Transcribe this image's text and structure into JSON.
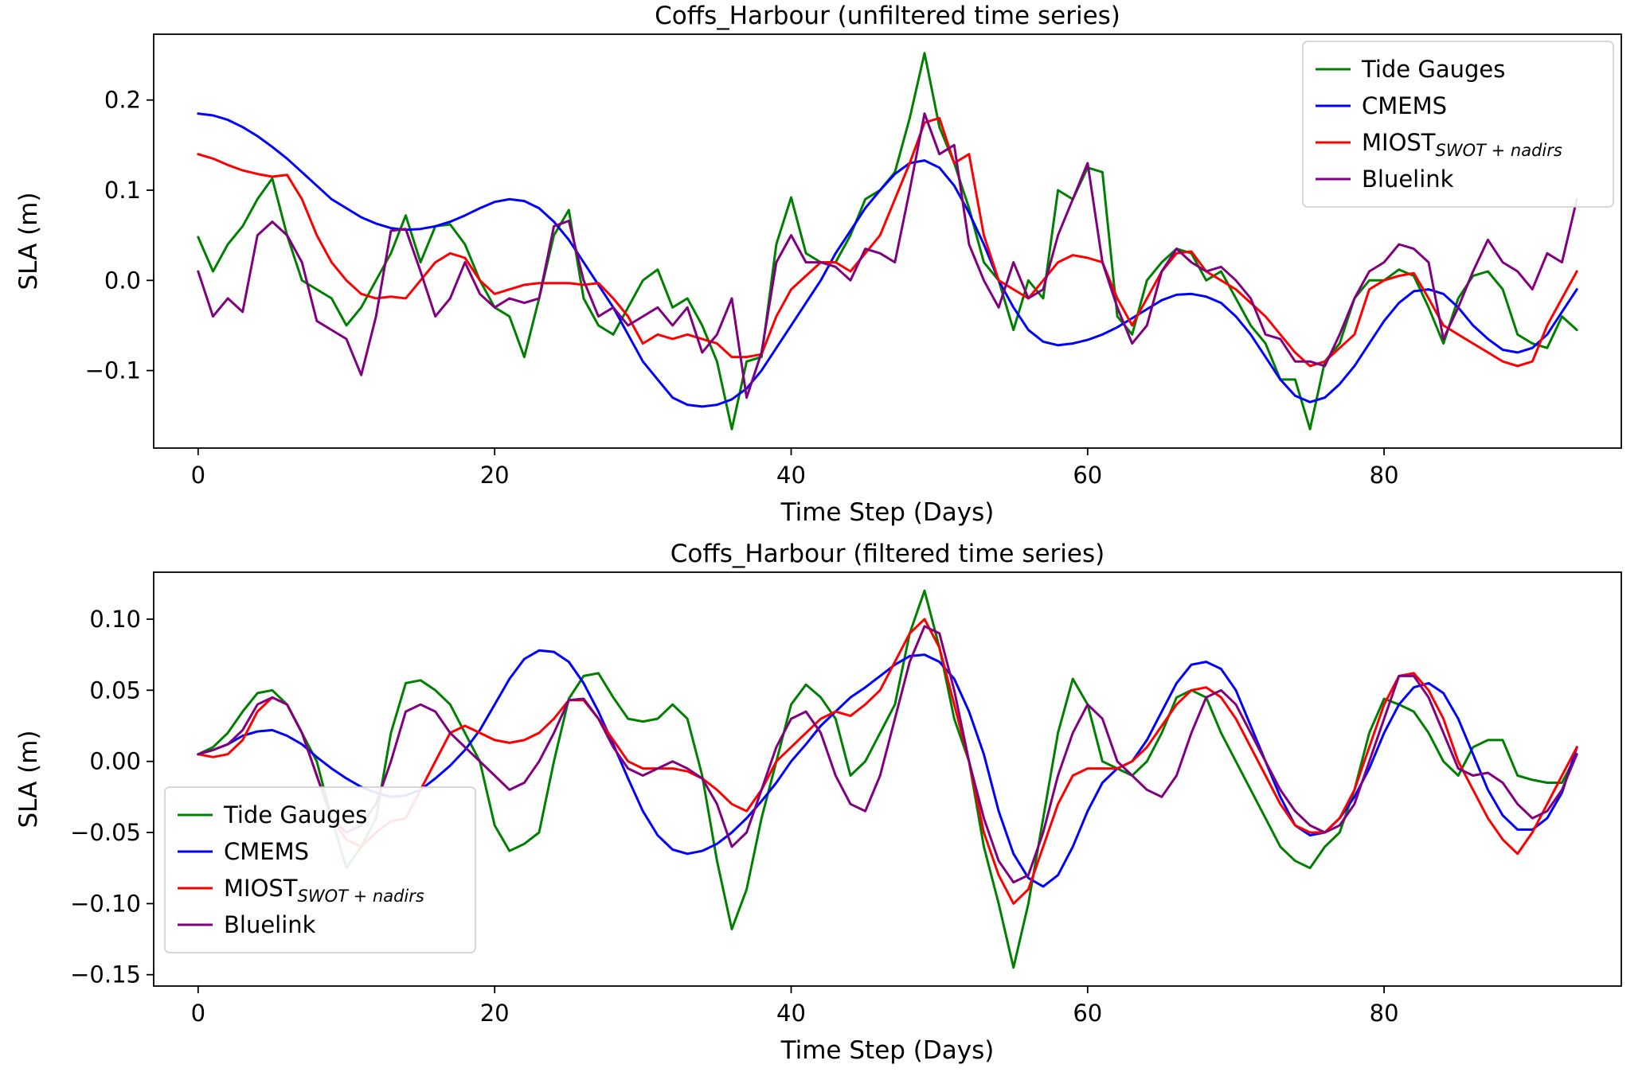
{
  "figure": {
    "background": "#ffffff"
  },
  "chart_data": [
    {
      "id": "unfiltered",
      "type": "line",
      "title": "Coffs_Harbour (unfiltered time series)",
      "xlabel": "Time Step (Days)",
      "ylabel": "SLA (m)",
      "xlim": [
        -3.0,
        96.0
      ],
      "ylim": [
        -0.186,
        0.273
      ],
      "xticks": [
        0,
        20,
        40,
        60,
        80
      ],
      "yticks": [
        0.2,
        0.1,
        0.0,
        -0.1
      ],
      "ytick_decimals": 1,
      "grid": false,
      "legend_position": "upper-right",
      "x_start": 0,
      "x_step": 1,
      "n_points": 94,
      "series": [
        {
          "name": "Tide Gauges",
          "color": "#008000",
          "values": [
            0.048,
            0.01,
            0.04,
            0.06,
            0.09,
            0.113,
            0.05,
            0.0,
            -0.01,
            -0.02,
            -0.05,
            -0.03,
            0.0,
            0.03,
            0.072,
            0.02,
            0.06,
            0.062,
            0.04,
            0.0,
            -0.03,
            -0.04,
            -0.085,
            -0.02,
            0.05,
            0.078,
            -0.02,
            -0.05,
            -0.06,
            -0.03,
            0.0,
            0.012,
            -0.03,
            -0.02,
            -0.05,
            -0.09,
            -0.165,
            -0.09,
            -0.085,
            0.04,
            0.092,
            0.03,
            0.02,
            0.02,
            0.05,
            0.09,
            0.1,
            0.12,
            0.18,
            0.252,
            0.17,
            0.13,
            0.08,
            0.02,
            0.0,
            -0.055,
            0.0,
            -0.02,
            0.1,
            0.09,
            0.125,
            0.12,
            -0.04,
            -0.06,
            0.0,
            0.02,
            0.035,
            0.03,
            0.0,
            0.01,
            -0.02,
            -0.05,
            -0.07,
            -0.11,
            -0.11,
            -0.165,
            -0.09,
            -0.07,
            -0.02,
            0.0,
            0.0,
            0.012,
            0.005,
            -0.03,
            -0.07,
            -0.02,
            0.005,
            0.01,
            -0.01,
            -0.06,
            -0.07,
            -0.075,
            -0.04,
            -0.055
          ]
        },
        {
          "name": "CMEMS",
          "color": "#0000ff",
          "values": [
            0.185,
            0.183,
            0.178,
            0.17,
            0.16,
            0.148,
            0.135,
            0.12,
            0.105,
            0.09,
            0.08,
            0.07,
            0.063,
            0.058,
            0.056,
            0.057,
            0.06,
            0.065,
            0.072,
            0.08,
            0.087,
            0.09,
            0.088,
            0.08,
            0.065,
            0.045,
            0.02,
            -0.005,
            -0.03,
            -0.06,
            -0.09,
            -0.11,
            -0.13,
            -0.138,
            -0.14,
            -0.138,
            -0.132,
            -0.12,
            -0.1,
            -0.075,
            -0.05,
            -0.025,
            0.0,
            0.03,
            0.055,
            0.08,
            0.1,
            0.118,
            0.13,
            0.133,
            0.125,
            0.105,
            0.075,
            0.04,
            0.0,
            -0.03,
            -0.055,
            -0.068,
            -0.072,
            -0.07,
            -0.066,
            -0.06,
            -0.052,
            -0.042,
            -0.032,
            -0.022,
            -0.016,
            -0.015,
            -0.018,
            -0.025,
            -0.04,
            -0.06,
            -0.085,
            -0.11,
            -0.128,
            -0.135,
            -0.13,
            -0.115,
            -0.095,
            -0.07,
            -0.045,
            -0.025,
            -0.012,
            -0.01,
            -0.015,
            -0.03,
            -0.05,
            -0.065,
            -0.077,
            -0.08,
            -0.075,
            -0.06,
            -0.035,
            -0.01
          ]
        },
        {
          "name": "MIOST",
          "name_subscript": "SWOT + nadirs",
          "color": "#ff0000",
          "values": [
            0.14,
            0.135,
            0.128,
            0.122,
            0.118,
            0.115,
            0.117,
            0.09,
            0.05,
            0.02,
            0.0,
            -0.015,
            -0.02,
            -0.018,
            -0.02,
            0.0,
            0.02,
            0.03,
            0.025,
            0.0,
            -0.015,
            -0.01,
            -0.005,
            -0.003,
            -0.003,
            -0.003,
            -0.005,
            -0.003,
            -0.02,
            -0.04,
            -0.07,
            -0.06,
            -0.065,
            -0.06,
            -0.065,
            -0.07,
            -0.085,
            -0.085,
            -0.082,
            -0.04,
            -0.01,
            0.005,
            0.02,
            0.02,
            0.01,
            0.03,
            0.05,
            0.09,
            0.13,
            0.175,
            0.18,
            0.13,
            0.14,
            0.05,
            0.0,
            -0.01,
            -0.02,
            0.0,
            0.02,
            0.028,
            0.025,
            0.02,
            -0.02,
            -0.05,
            -0.02,
            0.01,
            0.03,
            0.032,
            0.01,
            0.0,
            -0.01,
            -0.025,
            -0.04,
            -0.06,
            -0.08,
            -0.095,
            -0.09,
            -0.075,
            -0.06,
            -0.01,
            0.0,
            0.005,
            0.008,
            -0.02,
            -0.05,
            -0.06,
            -0.07,
            -0.08,
            -0.09,
            -0.095,
            -0.09,
            -0.05,
            -0.02,
            0.01
          ]
        },
        {
          "name": "Bluelink",
          "color": "#800080",
          "values": [
            0.01,
            -0.04,
            -0.02,
            -0.035,
            0.05,
            0.065,
            0.05,
            0.02,
            -0.045,
            -0.055,
            -0.065,
            -0.105,
            -0.04,
            0.055,
            0.057,
            0.01,
            -0.04,
            -0.02,
            0.02,
            -0.015,
            -0.03,
            -0.02,
            -0.025,
            -0.02,
            0.06,
            0.066,
            0.0,
            -0.04,
            -0.03,
            -0.05,
            -0.04,
            -0.03,
            -0.05,
            -0.03,
            -0.08,
            -0.06,
            -0.02,
            -0.13,
            -0.08,
            0.02,
            0.05,
            0.02,
            0.02,
            0.015,
            0.0,
            0.035,
            0.03,
            0.02,
            0.1,
            0.185,
            0.14,
            0.15,
            0.04,
            0.0,
            -0.03,
            0.02,
            -0.02,
            -0.01,
            0.05,
            0.09,
            0.13,
            0.02,
            -0.03,
            -0.07,
            -0.05,
            0.01,
            0.035,
            0.02,
            0.01,
            0.015,
            0.0,
            -0.02,
            -0.06,
            -0.065,
            -0.09,
            -0.09,
            -0.095,
            -0.06,
            -0.02,
            0.01,
            0.02,
            0.04,
            0.035,
            0.02,
            -0.065,
            -0.03,
            0.01,
            0.045,
            0.02,
            0.01,
            -0.01,
            0.03,
            0.02,
            0.09
          ]
        }
      ]
    },
    {
      "id": "filtered",
      "type": "line",
      "title": "Coffs_Harbour (filtered time series)",
      "xlabel": "Time Step (Days)",
      "ylabel": "SLA (m)",
      "xlim": [
        -3.0,
        96.0
      ],
      "ylim": [
        -0.158,
        0.133
      ],
      "xticks": [
        0,
        20,
        40,
        60,
        80
      ],
      "yticks": [
        0.1,
        0.05,
        0.0,
        -0.05,
        -0.1,
        -0.15
      ],
      "ytick_decimals": 2,
      "grid": false,
      "legend_position": "center-left",
      "x_start": 0,
      "x_step": 1,
      "n_points": 94,
      "series": [
        {
          "name": "Tide Gauges",
          "color": "#008000",
          "values": [
            0.005,
            0.01,
            0.02,
            0.035,
            0.048,
            0.05,
            0.04,
            0.02,
            0.0,
            -0.04,
            -0.075,
            -0.06,
            -0.04,
            0.02,
            0.055,
            0.057,
            0.05,
            0.04,
            0.02,
            0.0,
            -0.045,
            -0.063,
            -0.058,
            -0.05,
            0.0,
            0.044,
            0.06,
            0.062,
            0.045,
            0.03,
            0.028,
            0.03,
            0.04,
            0.03,
            -0.01,
            -0.07,
            -0.118,
            -0.09,
            -0.04,
            0.0,
            0.04,
            0.054,
            0.045,
            0.03,
            -0.01,
            0.0,
            0.02,
            0.04,
            0.09,
            0.12,
            0.08,
            0.03,
            0.0,
            -0.06,
            -0.1,
            -0.145,
            -0.1,
            -0.04,
            0.02,
            0.058,
            0.04,
            0.0,
            -0.005,
            -0.01,
            0.0,
            0.02,
            0.045,
            0.05,
            0.045,
            0.02,
            0.0,
            -0.02,
            -0.04,
            -0.06,
            -0.07,
            -0.075,
            -0.06,
            -0.05,
            -0.02,
            0.02,
            0.044,
            0.04,
            0.035,
            0.02,
            0.0,
            -0.01,
            0.01,
            0.015,
            0.015,
            -0.01,
            -0.013,
            -0.015,
            -0.015,
            0.005
          ]
        },
        {
          "name": "CMEMS",
          "color": "#0000ff",
          "values": [
            0.005,
            0.008,
            0.012,
            0.018,
            0.021,
            0.022,
            0.018,
            0.012,
            0.003,
            -0.005,
            -0.012,
            -0.018,
            -0.022,
            -0.025,
            -0.024,
            -0.02,
            -0.012,
            -0.003,
            0.008,
            0.022,
            0.04,
            0.058,
            0.072,
            0.078,
            0.077,
            0.07,
            0.055,
            0.035,
            0.012,
            -0.012,
            -0.035,
            -0.052,
            -0.062,
            -0.065,
            -0.063,
            -0.058,
            -0.05,
            -0.04,
            -0.028,
            -0.015,
            0.0,
            0.012,
            0.025,
            0.035,
            0.045,
            0.052,
            0.06,
            0.068,
            0.074,
            0.075,
            0.07,
            0.058,
            0.035,
            0.005,
            -0.035,
            -0.065,
            -0.082,
            -0.088,
            -0.08,
            -0.06,
            -0.035,
            -0.015,
            -0.005,
            0.0,
            0.015,
            0.035,
            0.055,
            0.068,
            0.07,
            0.065,
            0.05,
            0.025,
            0.0,
            -0.025,
            -0.045,
            -0.052,
            -0.05,
            -0.04,
            -0.025,
            -0.005,
            0.02,
            0.04,
            0.052,
            0.055,
            0.048,
            0.03,
            0.005,
            -0.02,
            -0.038,
            -0.048,
            -0.048,
            -0.04,
            -0.022,
            0.01
          ]
        },
        {
          "name": "MIOST",
          "name_subscript": "SWOT + nadirs",
          "color": "#ff0000",
          "values": [
            0.005,
            0.003,
            0.005,
            0.015,
            0.035,
            0.045,
            0.04,
            0.02,
            -0.01,
            -0.04,
            -0.055,
            -0.06,
            -0.05,
            -0.042,
            -0.04,
            -0.02,
            0.0,
            0.02,
            0.025,
            0.02,
            0.015,
            0.013,
            0.015,
            0.02,
            0.03,
            0.043,
            0.043,
            0.03,
            0.015,
            0.0,
            -0.005,
            -0.005,
            -0.005,
            -0.007,
            -0.012,
            -0.02,
            -0.03,
            -0.035,
            -0.02,
            0.0,
            0.01,
            0.02,
            0.03,
            0.035,
            0.032,
            0.04,
            0.05,
            0.07,
            0.09,
            0.1,
            0.08,
            0.04,
            0.0,
            -0.05,
            -0.08,
            -0.1,
            -0.09,
            -0.06,
            -0.03,
            -0.01,
            -0.005,
            -0.005,
            -0.005,
            0.0,
            0.01,
            0.025,
            0.04,
            0.05,
            0.052,
            0.045,
            0.03,
            0.01,
            -0.01,
            -0.03,
            -0.045,
            -0.05,
            -0.05,
            -0.04,
            -0.02,
            0.01,
            0.04,
            0.06,
            0.062,
            0.05,
            0.03,
            0.0,
            -0.02,
            -0.04,
            -0.055,
            -0.065,
            -0.05,
            -0.03,
            -0.01,
            0.01
          ]
        },
        {
          "name": "Bluelink",
          "color": "#800080",
          "values": [
            0.005,
            0.008,
            0.012,
            0.022,
            0.04,
            0.045,
            0.04,
            0.02,
            -0.01,
            -0.04,
            -0.05,
            -0.045,
            -0.03,
            0.0,
            0.035,
            0.04,
            0.035,
            0.02,
            0.01,
            0.0,
            -0.01,
            -0.02,
            -0.015,
            0.0,
            0.02,
            0.043,
            0.044,
            0.03,
            0.01,
            -0.005,
            -0.01,
            -0.005,
            0.0,
            -0.005,
            -0.012,
            -0.03,
            -0.06,
            -0.05,
            -0.02,
            0.01,
            0.03,
            0.035,
            0.02,
            -0.01,
            -0.03,
            -0.035,
            -0.01,
            0.03,
            0.07,
            0.095,
            0.09,
            0.05,
            0.0,
            -0.04,
            -0.07,
            -0.085,
            -0.08,
            -0.05,
            -0.01,
            0.02,
            0.04,
            0.03,
            0.0,
            -0.01,
            -0.02,
            -0.025,
            -0.01,
            0.02,
            0.045,
            0.05,
            0.04,
            0.02,
            0.0,
            -0.02,
            -0.035,
            -0.045,
            -0.05,
            -0.045,
            -0.03,
            0.0,
            0.03,
            0.06,
            0.06,
            0.045,
            0.02,
            -0.005,
            -0.01,
            -0.008,
            -0.015,
            -0.03,
            -0.04,
            -0.035,
            -0.02,
            0.005
          ]
        }
      ]
    }
  ]
}
